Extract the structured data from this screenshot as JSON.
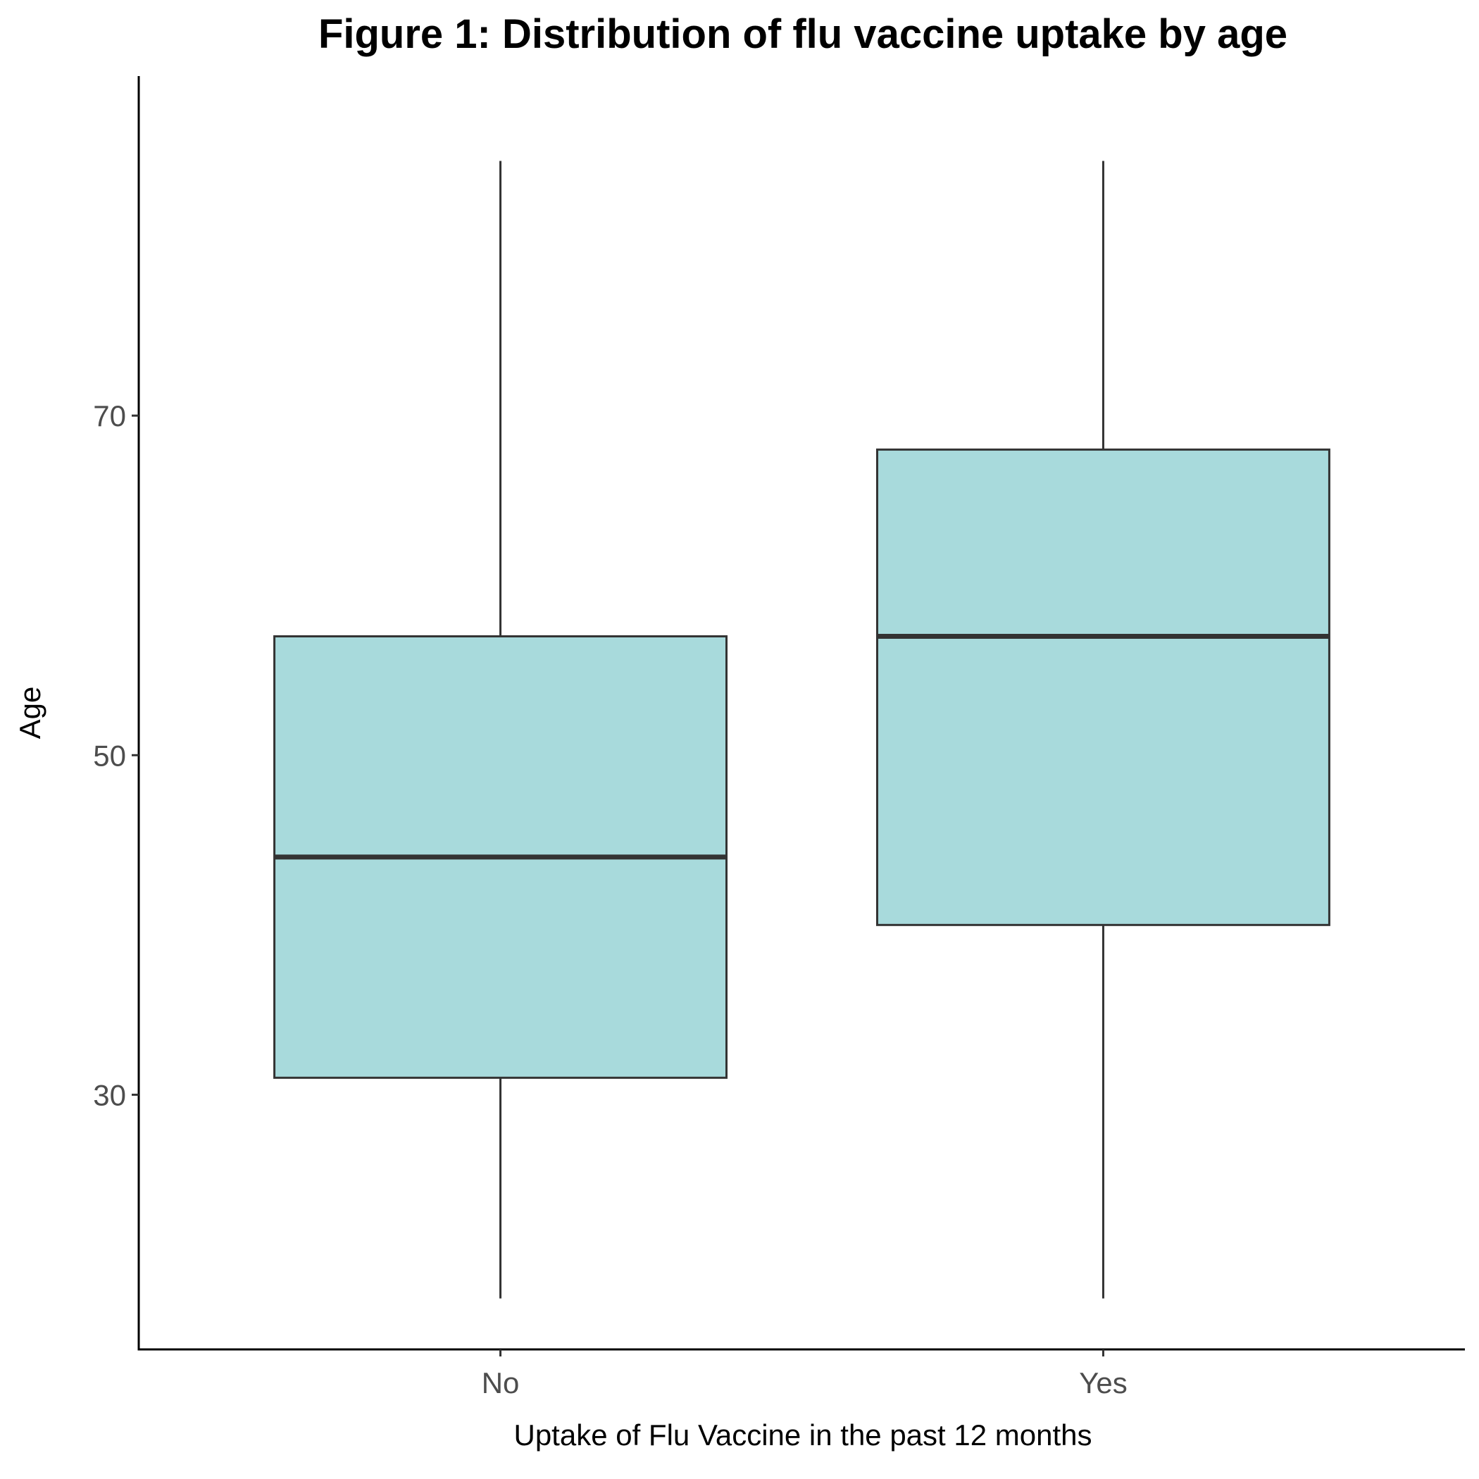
{
  "chart_data": {
    "type": "boxplot",
    "title": "Figure 1: Distribution of flu vaccine uptake by age",
    "xlabel": "Uptake of Flu Vaccine in the past 12 months",
    "ylabel": "Age",
    "categories": [
      "No",
      "Yes"
    ],
    "boxes": [
      {
        "category": "No",
        "whisker_low": 18,
        "q1": 31,
        "median": 44,
        "q3": 57,
        "whisker_high": 85
      },
      {
        "category": "Yes",
        "whisker_low": 18,
        "q1": 40,
        "median": 57,
        "q3": 68,
        "whisker_high": 85
      }
    ],
    "ylim": [
      15,
      90
    ],
    "yticks": [
      30,
      50,
      70
    ],
    "grid": false,
    "legend": "none",
    "box_fill": "#a8dadc",
    "box_stroke": "#333333",
    "axis_color": "#000000"
  }
}
